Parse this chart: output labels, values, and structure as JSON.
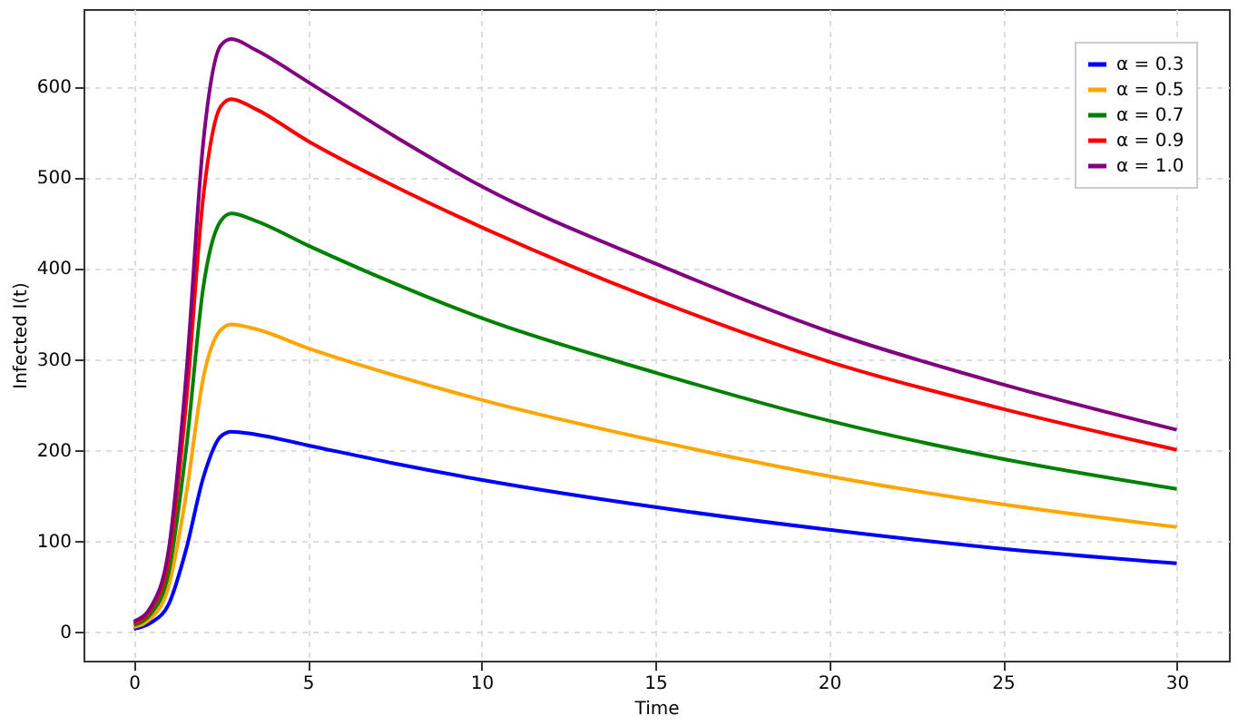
{
  "chart_data": {
    "type": "line",
    "xlabel": "Time",
    "ylabel": "Infected I(t)",
    "x": [
      0,
      0.5,
      1,
      1.5,
      2,
      2.5,
      2.8,
      3.5,
      5,
      7.5,
      10,
      15,
      20,
      25,
      30
    ],
    "series": [
      {
        "name": "α = 0.3",
        "color": "#0000ff",
        "values": [
          3,
          10,
          30,
          90,
          170,
          215,
          220,
          217,
          205,
          185,
          167,
          137,
          112,
          91,
          75
        ]
      },
      {
        "name": "α = 0.5",
        "color": "#ffa500",
        "values": [
          5,
          15,
          50,
          150,
          280,
          332,
          338,
          333,
          312,
          282,
          255,
          210,
          171,
          140,
          115
        ]
      },
      {
        "name": "α = 0.7",
        "color": "#008000",
        "values": [
          7,
          20,
          65,
          200,
          380,
          452,
          460,
          452,
          425,
          383,
          345,
          285,
          232,
          190,
          157
        ]
      },
      {
        "name": "α = 0.9",
        "color": "#ff0000",
        "values": [
          9,
          25,
          80,
          250,
          480,
          578,
          586,
          575,
          540,
          490,
          445,
          365,
          297,
          245,
          200
        ]
      },
      {
        "name": "α = 1.0",
        "color": "#800080",
        "values": [
          11,
          28,
          90,
          280,
          540,
          645,
          652,
          640,
          605,
          545,
          490,
          405,
          330,
          272,
          222
        ]
      }
    ],
    "xlim": [
      -1.45,
      31.5
    ],
    "ylim": [
      -32,
      685
    ],
    "xticks": [
      0,
      5,
      10,
      15,
      20,
      25,
      30
    ],
    "yticks": [
      0,
      100,
      200,
      300,
      400,
      500,
      600
    ],
    "grid": true,
    "legend": "top right",
    "marker": "none",
    "line_style": "solid"
  }
}
